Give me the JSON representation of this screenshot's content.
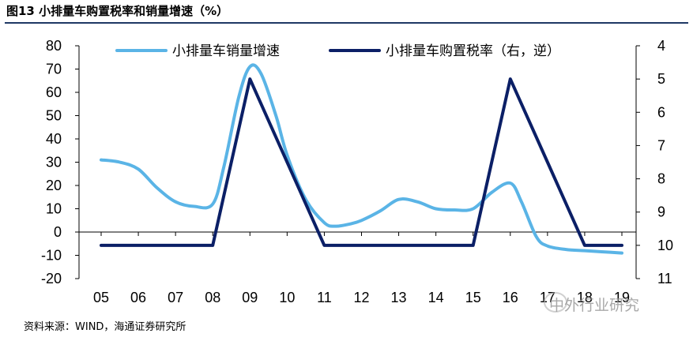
{
  "title": "图13 小排量车购置税率和销量增速（%）",
  "source": "资料来源：WIND，海通证券研究所",
  "watermark": "中外行业研究",
  "colors": {
    "series_sales": "#5ab4e6",
    "series_tax": "#0b1f66",
    "title_rule": "#1f3864"
  },
  "chart_data": {
    "type": "line",
    "title": "",
    "xlabel": "",
    "ylabel": "",
    "categories": [
      "05",
      "06",
      "07",
      "08",
      "09",
      "10",
      "11",
      "12",
      "13",
      "14",
      "15",
      "16",
      "17",
      "18",
      "19"
    ],
    "ylim_left": [
      -20,
      80
    ],
    "yticks_left": [
      "80",
      "70",
      "60",
      "50",
      "40",
      "30",
      "20",
      "10",
      "0",
      "-10",
      "-20"
    ],
    "ylim_right": [
      4,
      11
    ],
    "right_axis_inverted": true,
    "yticks_right": [
      "4",
      "5",
      "6",
      "7",
      "8",
      "9",
      "10",
      "11"
    ],
    "grid": false,
    "legend_position": "top",
    "series": [
      {
        "name": "小排量车销量增速",
        "axis": "left",
        "smooth": true,
        "x": [
          0,
          0.5,
          1,
          1.5,
          2,
          2.5,
          3,
          3.3,
          3.7,
          4,
          4.3,
          4.7,
          5,
          5.5,
          6,
          6.3,
          6.7,
          7,
          7.5,
          8,
          8.5,
          9,
          9.5,
          10,
          10.5,
          11,
          11.3,
          11.7,
          12,
          12.5,
          13,
          13.5,
          14
        ],
        "values": [
          31,
          30,
          27,
          19,
          13,
          11,
          12,
          28,
          58,
          71,
          68,
          50,
          33,
          14,
          4,
          2.5,
          3.5,
          5,
          9,
          14,
          13,
          10,
          9.5,
          10,
          17,
          21,
          13,
          -2,
          -6,
          -7.5,
          -8,
          -8.5,
          -9
        ]
      },
      {
        "name": "小排量车购置税率（右，逆）",
        "axis": "right",
        "smooth": false,
        "x": [
          0,
          1,
          2,
          3,
          4,
          6,
          7,
          8,
          9,
          10,
          11,
          12,
          13,
          14
        ],
        "values": [
          10,
          10,
          10,
          10,
          5,
          10,
          10,
          10,
          10,
          10,
          5,
          7.5,
          10,
          10
        ]
      }
    ]
  }
}
